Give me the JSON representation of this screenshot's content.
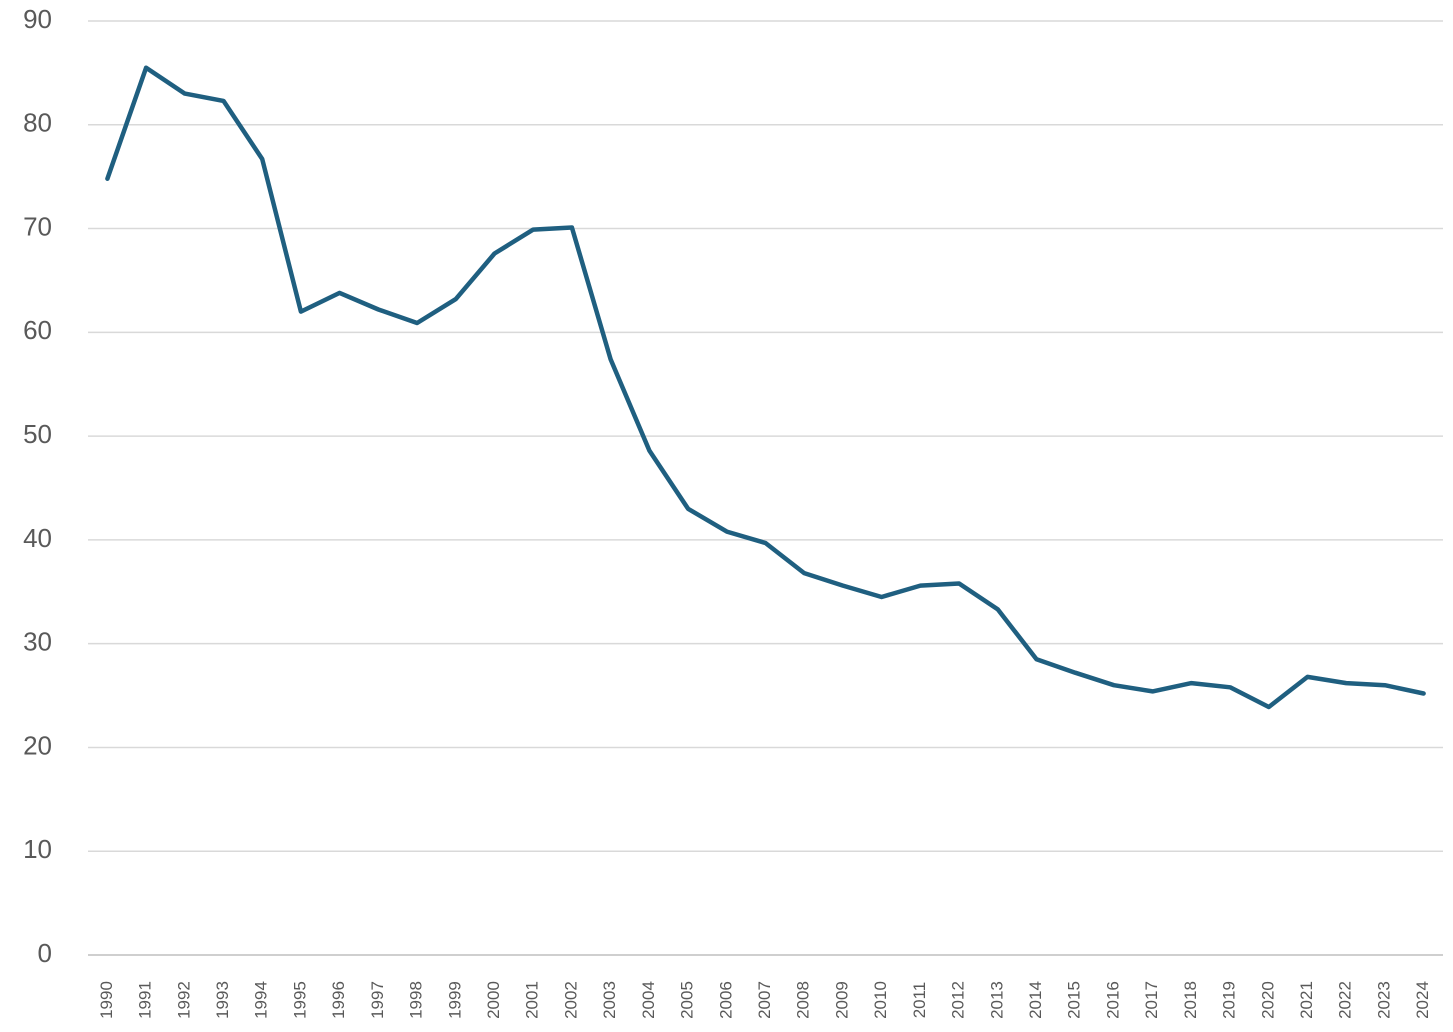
{
  "chart_data": {
    "type": "line",
    "categories": [
      "1990",
      "1991",
      "1992",
      "1993",
      "1994",
      "1995",
      "1996",
      "1997",
      "1998",
      "1999",
      "2000",
      "2001",
      "2002",
      "2003",
      "2004",
      "2005",
      "2006",
      "2007",
      "2008",
      "2009",
      "2010",
      "2011",
      "2012",
      "2013",
      "2014",
      "2015",
      "2016",
      "2017",
      "2018",
      "2019",
      "2020",
      "2021",
      "2022",
      "2023",
      "2024"
    ],
    "values": [
      74.8,
      85.5,
      83.0,
      82.3,
      76.7,
      62.0,
      63.8,
      62.2,
      60.9,
      63.2,
      67.6,
      69.9,
      70.1,
      57.4,
      48.6,
      43.0,
      40.8,
      39.7,
      36.8,
      35.6,
      34.5,
      35.6,
      35.8,
      33.3,
      28.5,
      27.2,
      26.0,
      25.4,
      26.2,
      25.8,
      23.9,
      26.8,
      26.2,
      26.0,
      25.2
    ],
    "color": "#1f5f80",
    "ylim": [
      0,
      90
    ],
    "yticks": [
      0,
      10,
      20,
      30,
      40,
      50,
      60,
      70,
      80,
      90
    ],
    "grid": true
  }
}
